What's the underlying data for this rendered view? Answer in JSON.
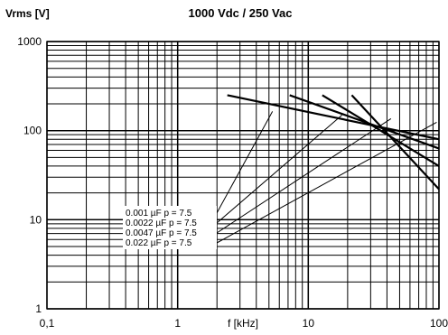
{
  "chart_data": {
    "type": "line",
    "title": "1000 Vdc / 250 Vac",
    "ylabel": "Vrms [V]",
    "xlabel": "f [kHz]",
    "x_scale": "log",
    "y_scale": "log",
    "xlim": [
      0.1,
      100
    ],
    "ylim": [
      1,
      1000
    ],
    "x_ticks": [
      "0,1",
      "1",
      "10",
      "100"
    ],
    "y_ticks": [
      "1",
      "10",
      "100",
      "1000"
    ],
    "grid": true,
    "legend_placement": "left-middle",
    "series": [
      {
        "name": "0.001  µF  p = 7.5",
        "x": [
          2.4,
          100
        ],
        "y": [
          250,
          80
        ]
      },
      {
        "name": "0.0022 µF  p = 7.5",
        "x": [
          7.2,
          100
        ],
        "y": [
          250,
          63
        ]
      },
      {
        "name": "0.0047 µF  p = 7.5",
        "x": [
          12.8,
          100
        ],
        "y": [
          250,
          40
        ]
      },
      {
        "name": "0.022  µF  p = 7.5",
        "x": [
          21.5,
          100
        ],
        "y": [
          250,
          22
        ]
      }
    ]
  }
}
